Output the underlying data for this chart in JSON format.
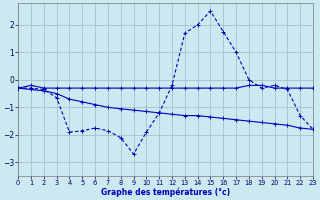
{
  "xlabel": "Graphe des températures (°c)",
  "background_color": "#cce8f0",
  "line_color": "#0000bb",
  "grid_color": "#99bbcc",
  "xlim": [
    0,
    23
  ],
  "ylim": [
    -3.5,
    2.8
  ],
  "yticks": [
    -3,
    -2,
    -1,
    0,
    1,
    2
  ],
  "xticks": [
    0,
    1,
    2,
    3,
    4,
    5,
    6,
    7,
    8,
    9,
    10,
    11,
    12,
    13,
    14,
    15,
    16,
    17,
    18,
    19,
    20,
    21,
    22,
    23
  ],
  "s1_x": [
    0,
    1,
    2,
    3,
    4,
    5,
    6,
    7,
    8,
    9,
    10,
    11,
    12,
    13,
    14,
    15,
    16,
    17,
    18,
    19,
    20,
    21,
    22,
    23
  ],
  "s1_y": [
    -0.3,
    -0.2,
    -0.3,
    -0.3,
    -0.3,
    -0.3,
    -0.3,
    -0.3,
    -0.3,
    -0.3,
    -0.3,
    -0.3,
    -0.3,
    -0.3,
    -0.3,
    -0.3,
    -0.3,
    -0.3,
    -0.2,
    -0.2,
    -0.3,
    -0.3,
    -0.3,
    -0.3
  ],
  "s2_x": [
    0,
    1,
    2,
    3,
    4,
    5,
    6,
    7,
    8,
    9,
    10,
    11,
    12,
    13,
    14,
    15,
    16,
    17,
    18,
    19,
    20,
    21,
    22,
    23
  ],
  "s2_y": [
    -0.3,
    -0.35,
    -0.4,
    -0.5,
    -0.7,
    -0.8,
    -0.9,
    -1.0,
    -1.05,
    -1.1,
    -1.15,
    -1.2,
    -1.25,
    -1.3,
    -1.3,
    -1.35,
    -1.4,
    -1.45,
    -1.5,
    -1.55,
    -1.6,
    -1.65,
    -1.75,
    -1.8
  ],
  "s3_x": [
    0,
    1,
    2,
    3,
    4,
    5,
    6,
    7,
    8,
    9,
    10,
    11,
    12,
    13,
    14,
    15,
    16,
    17,
    18,
    19,
    20,
    21,
    22,
    23
  ],
  "s3_y": [
    -0.3,
    -0.3,
    -0.35,
    -0.65,
    -1.9,
    -1.85,
    -1.75,
    -1.85,
    -2.1,
    -2.7,
    -1.9,
    -1.2,
    -0.2,
    1.7,
    2.0,
    2.5,
    1.75,
    1.0,
    0.0,
    -0.3,
    -0.2,
    -0.35,
    -1.3,
    -1.8
  ]
}
